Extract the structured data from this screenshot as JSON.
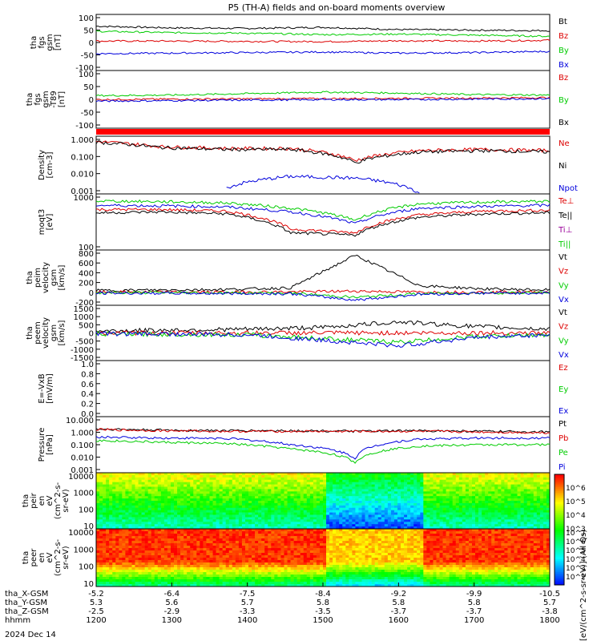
{
  "title": "P5 (TH-A) fields and on-board moments overview",
  "date_label": "2024 Dec 14",
  "colorbar_label": "[eV/(cm^2-s-sr-eV)] (All Qs)",
  "colorbar_ticks": [
    "10^6",
    "10^5",
    "10^4",
    "10^3"
  ],
  "colorbar_ticks_lower": [
    "10^7",
    "10^6",
    "10^5",
    "10^4",
    "10^3",
    "10^2"
  ],
  "orbit_rows": [
    {
      "label": "tha_X-GSM",
      "values": [
        "-5.2",
        "-6.4",
        "-7.5",
        "-8.4",
        "-9.2",
        "-9.9",
        "-10.5"
      ]
    },
    {
      "label": "tha_Y-GSM",
      "values": [
        "5.3",
        "5.6",
        "5.7",
        "5.8",
        "5.8",
        "5.8",
        "5.7"
      ]
    },
    {
      "label": "tha_Z-GSM",
      "values": [
        "-2.5",
        "-2.9",
        "-3.3",
        "-3.5",
        "-3.7",
        "-3.7",
        "-3.8"
      ]
    },
    {
      "label": "hhmm",
      "values": [
        "1200",
        "1300",
        "1400",
        "1500",
        "1600",
        "1700",
        "1800"
      ]
    }
  ],
  "panels": [
    {
      "id": "fgs",
      "ylabel": [
        "tha",
        "fgs",
        "gsm",
        "[nT]"
      ],
      "ticks": [
        "100",
        "50",
        "0",
        "-50",
        "-100"
      ],
      "legend": [
        {
          "text": "Bt",
          "color": "#000000"
        },
        {
          "text": "Bz",
          "color": "#dd0000"
        },
        {
          "text": "By",
          "color": "#00cc00"
        },
        {
          "text": "Bx",
          "color": "#0000dd"
        }
      ]
    },
    {
      "id": "fgs_dip",
      "ylabel": [
        "tha",
        "fgs",
        "gsm",
        "-T89",
        "[nT]"
      ],
      "ticks": [
        "100",
        "50",
        "0",
        "-50",
        "-100"
      ],
      "legend": [
        {
          "text": "Bz",
          "color": "#dd0000"
        },
        {
          "text": "By",
          "color": "#00cc00"
        },
        {
          "text": "Bx",
          "color": "#000000"
        }
      ]
    },
    {
      "id": "density",
      "ylabel": [
        "Density",
        "[cm-3]"
      ],
      "ticks": [
        "1.000",
        "0.100",
        "0.010",
        "0.001"
      ],
      "legend": [
        {
          "text": "Ne",
          "color": "#dd0000"
        },
        {
          "text": "Ni",
          "color": "#000000"
        },
        {
          "text": "Npot",
          "color": "#0000dd"
        }
      ]
    },
    {
      "id": "temp",
      "ylabel": [
        "moqt3",
        "[eV]"
      ],
      "ticks": [
        "1000",
        "100"
      ],
      "legend": [
        {
          "text": "Te⊥",
          "color": "#dd0000"
        },
        {
          "text": "Te||",
          "color": "#000000"
        },
        {
          "text": "Ti⊥",
          "color": "#990099"
        },
        {
          "text": "Ti||",
          "color": "#00cc00"
        }
      ]
    },
    {
      "id": "peim",
      "ylabel": [
        "tha",
        "peim",
        "velocity",
        "gsm",
        "[km/s]"
      ],
      "ticks": [
        "800",
        "600",
        "400",
        "200",
        "0",
        "-200"
      ],
      "legend": [
        {
          "text": "Vt",
          "color": "#000000"
        },
        {
          "text": "Vz",
          "color": "#dd0000"
        },
        {
          "text": "Vy",
          "color": "#00cc00"
        },
        {
          "text": "Vx",
          "color": "#0000dd"
        }
      ]
    },
    {
      "id": "peem",
      "ylabel": [
        "tha",
        "peem",
        "velocity",
        "gsm",
        "[km/s]"
      ],
      "ticks": [
        "1500",
        "1000",
        "500",
        "0",
        "-500",
        "-1000",
        "-1500"
      ],
      "legend": [
        {
          "text": "Vt",
          "color": "#000000"
        },
        {
          "text": "Vz",
          "color": "#dd0000"
        },
        {
          "text": "Vy",
          "color": "#00cc00"
        },
        {
          "text": "Vx",
          "color": "#0000dd"
        }
      ]
    },
    {
      "id": "efield",
      "ylabel": [
        "E=-VxB",
        "[mV/m]"
      ],
      "ticks": [
        "1.0",
        "0.8",
        "0.6",
        "0.4",
        "0.2",
        "0.0"
      ],
      "legend": [
        {
          "text": "Ez",
          "color": "#dd0000"
        },
        {
          "text": "Ey",
          "color": "#00cc00"
        },
        {
          "text": "Ex",
          "color": "#0000dd"
        }
      ]
    },
    {
      "id": "pressure",
      "ylabel": [
        "Pressure",
        "[nPa]"
      ],
      "ticks": [
        "10.000",
        "1.000",
        "0.100",
        "0.010",
        "0.001"
      ],
      "legend": [
        {
          "text": "Pt",
          "color": "#000000"
        },
        {
          "text": "Pb",
          "color": "#dd0000"
        },
        {
          "text": "Pe",
          "color": "#00cc00"
        },
        {
          "text": "Pi",
          "color": "#0000dd"
        }
      ]
    },
    {
      "id": "peir",
      "ylabel": [
        "tha",
        "peir",
        "en",
        "eV",
        "(cm^2-s-",
        "sr-eV)"
      ],
      "ticks": [
        "10000",
        "1000",
        "100",
        "10"
      ],
      "legend": []
    },
    {
      "id": "peer",
      "ylabel": [
        "tha",
        "peer",
        "en",
        "eV",
        "(cm^2-s-",
        "sr-eV)"
      ],
      "ticks": [
        "10000",
        "1000",
        "100",
        "10"
      ],
      "legend": []
    }
  ],
  "chart_data": [
    {
      "type": "line",
      "title": "tha fgs gsm",
      "xlabel": "hhmm",
      "x": [
        "1200",
        "1300",
        "1400",
        "1500",
        "1600",
        "1700",
        "1800"
      ],
      "ylabel": "[nT]",
      "ylim": [
        -100,
        100
      ],
      "series": [
        {
          "name": "Bt",
          "values": [
            58,
            52,
            50,
            54,
            46,
            44,
            42
          ]
        },
        {
          "name": "Bz",
          "values": [
            5,
            5,
            4,
            3,
            6,
            5,
            8
          ]
        },
        {
          "name": "By",
          "values": [
            40,
            35,
            33,
            28,
            30,
            26,
            22
          ]
        },
        {
          "name": "Bx",
          "values": [
            -40,
            -38,
            -36,
            -34,
            -38,
            -36,
            -32
          ]
        }
      ]
    },
    {
      "type": "line",
      "title": "tha fgs gsm -T89",
      "xlabel": "hhmm",
      "x": [
        "1200",
        "1300",
        "1400",
        "1500",
        "1600",
        "1700",
        "1800"
      ],
      "ylabel": "[nT]",
      "ylim": [
        -120,
        110
      ],
      "series": [
        {
          "name": "Bz",
          "values": [
            -6,
            -4,
            -3,
            -2,
            -1,
            0,
            2
          ]
        },
        {
          "name": "By",
          "values": [
            10,
            12,
            18,
            24,
            20,
            14,
            12
          ]
        },
        {
          "name": "Bx",
          "values": [
            -12,
            -10,
            -8,
            -6,
            -6,
            -4,
            -2
          ]
        }
      ]
    },
    {
      "type": "line",
      "title": "Density",
      "xlabel": "hhmm",
      "x": [
        "1200",
        "1300",
        "1400",
        "1500",
        "1530",
        "1600",
        "1700",
        "1800"
      ],
      "ylabel": "[cm-3]",
      "ylim": [
        0.001,
        2
      ],
      "series": [
        {
          "name": "Ne",
          "values": [
            1.0,
            0.5,
            0.4,
            0.4,
            0.08,
            0.3,
            0.35,
            0.3
          ]
        },
        {
          "name": "Ni",
          "values": [
            0.9,
            0.45,
            0.35,
            0.35,
            0.06,
            0.25,
            0.3,
            0.25
          ]
        },
        {
          "name": "Npot",
          "values": [
            null,
            null,
            0.002,
            0.01,
            0.008,
            0.001,
            null,
            null
          ]
        }
      ]
    },
    {
      "type": "line",
      "title": "moqt3",
      "xlabel": "hhmm",
      "x": [
        "1200",
        "1300",
        "1400",
        "1500",
        "1530",
        "1600",
        "1700",
        "1800"
      ],
      "ylabel": "[eV]",
      "ylim": [
        80,
        6000
      ],
      "series": [
        {
          "name": "Te⊥",
          "values": [
            1800,
            1800,
            1600,
            400,
            300,
            1200,
            1600,
            1700
          ]
        },
        {
          "name": "Te||",
          "values": [
            1400,
            1500,
            1300,
            300,
            250,
            1000,
            1300,
            1400
          ]
        },
        {
          "name": "Ti⊥",
          "values": [
            2500,
            2400,
            2200,
            1500,
            600,
            2000,
            2300,
            2500
          ]
        },
        {
          "name": "Ti||",
          "values": [
            3500,
            3300,
            3000,
            2000,
            800,
            2800,
            3200,
            3400
          ]
        }
      ]
    },
    {
      "type": "line",
      "title": "tha peim velocity gsm",
      "xlabel": "hhmm",
      "x": [
        "1200",
        "1300",
        "1400",
        "1500",
        "1550",
        "1600",
        "1700",
        "1800"
      ],
      "ylabel": "[km/s]",
      "ylim": [
        -250,
        800
      ],
      "series": [
        {
          "name": "Vt",
          "values": [
            30,
            40,
            50,
            80,
            700,
            120,
            60,
            40
          ]
        },
        {
          "name": "Vz",
          "values": [
            0,
            0,
            0,
            5,
            20,
            0,
            0,
            0
          ]
        },
        {
          "name": "Vy",
          "values": [
            -10,
            -10,
            -15,
            -20,
            -100,
            -30,
            -15,
            -10
          ]
        },
        {
          "name": "Vx",
          "values": [
            -20,
            -20,
            -25,
            -30,
            -150,
            -40,
            -20,
            -15
          ]
        }
      ]
    },
    {
      "type": "line",
      "title": "tha peem velocity gsm",
      "xlabel": "hhmm",
      "x": [
        "1200",
        "1300",
        "1400",
        "1500",
        "1600",
        "1700",
        "1800"
      ],
      "ylabel": "[km/s]",
      "ylim": [
        -1500,
        1500
      ],
      "series": [
        {
          "name": "Vt",
          "values": [
            100,
            150,
            200,
            300,
            600,
            350,
            200
          ]
        },
        {
          "name": "Vz",
          "values": [
            0,
            0,
            0,
            0,
            0,
            0,
            0
          ]
        },
        {
          "name": "Vy",
          "values": [
            -50,
            -80,
            -100,
            -300,
            -500,
            -200,
            -100
          ]
        },
        {
          "name": "Vx",
          "values": [
            -40,
            -60,
            -100,
            -400,
            -700,
            -250,
            -100
          ]
        }
      ]
    },
    {
      "type": "line",
      "title": "E=-VxB",
      "xlabel": "hhmm",
      "x": [
        "1200",
        "1800"
      ],
      "ylabel": "[mV/m]",
      "ylim": [
        0,
        1
      ],
      "series": [
        {
          "name": "Ez",
          "values": [
            null,
            null
          ]
        },
        {
          "name": "Ey",
          "values": [
            null,
            null
          ]
        },
        {
          "name": "Ex",
          "values": [
            null,
            null
          ]
        }
      ]
    },
    {
      "type": "line",
      "title": "Pressure",
      "xlabel": "hhmm",
      "x": [
        "1200",
        "1300",
        "1400",
        "1500",
        "1530",
        "1600",
        "1700",
        "1800"
      ],
      "ylabel": "[nPa]",
      "ylim": [
        0.001,
        10
      ],
      "series": [
        {
          "name": "Pt",
          "values": [
            1.3,
            1.1,
            1.0,
            1.0,
            0.9,
            1.0,
            0.9,
            0.8
          ]
        },
        {
          "name": "Pb",
          "values": [
            1.2,
            1.0,
            0.9,
            0.9,
            0.9,
            0.9,
            0.8,
            0.7
          ]
        },
        {
          "name": "Pe",
          "values": [
            0.2,
            0.15,
            0.12,
            0.05,
            0.005,
            0.08,
            0.1,
            0.1
          ]
        },
        {
          "name": "Pi",
          "values": [
            0.35,
            0.3,
            0.28,
            0.1,
            0.01,
            0.25,
            0.3,
            0.3
          ]
        }
      ]
    },
    {
      "type": "heatmap",
      "title": "tha peir en eflux",
      "xlabel": "hhmm",
      "x": [
        "1200",
        "1300",
        "1400",
        "1500",
        "1600",
        "1700",
        "1800"
      ],
      "ylabel": "eV",
      "ylim": [
        5,
        25000
      ],
      "zlabel": "[eV/(cm^2-s-sr-eV)]",
      "zlim": [
        1000,
        10000000
      ]
    },
    {
      "type": "heatmap",
      "title": "tha peer en eflux",
      "xlabel": "hhmm",
      "x": [
        "1200",
        "1300",
        "1400",
        "1500",
        "1600",
        "1700",
        "1800"
      ],
      "ylabel": "eV",
      "ylim": [
        5,
        25000
      ],
      "zlabel": "[eV/(cm^2-s-sr-eV)]",
      "zlim": [
        100,
        100000000
      ]
    }
  ]
}
